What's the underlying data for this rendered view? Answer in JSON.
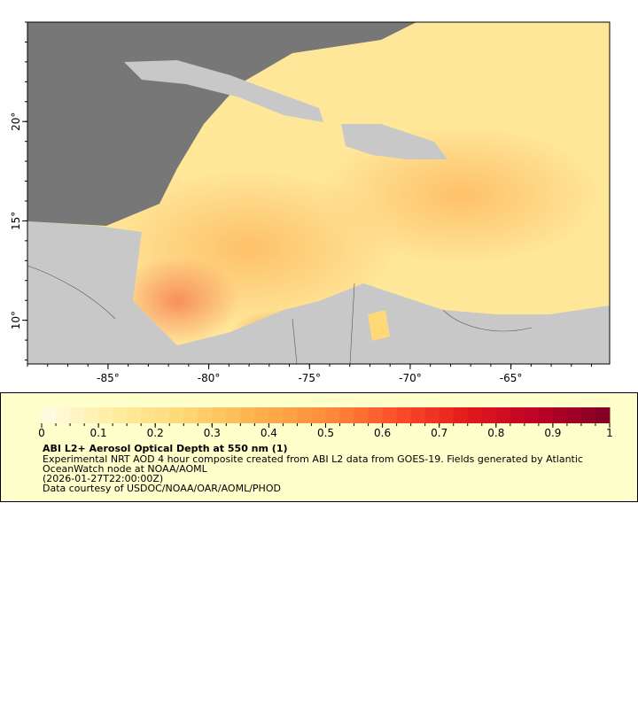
{
  "map": {
    "xlim": [
      -89,
      -60.1
    ],
    "ylim": [
      7.8,
      25
    ],
    "xticks": [
      {
        "value": -85,
        "label": "-85°"
      },
      {
        "value": -80,
        "label": "-80°"
      },
      {
        "value": -75,
        "label": "-75°"
      },
      {
        "value": -70,
        "label": "-70°"
      },
      {
        "value": -65,
        "label": "-65°"
      }
    ],
    "yticks": [
      {
        "value": 10,
        "label": "10°"
      },
      {
        "value": 15,
        "label": "15°"
      },
      {
        "value": 20,
        "label": "20°"
      }
    ]
  },
  "colorbar": {
    "lim": [
      0,
      1
    ],
    "ticks": [
      0,
      0.1,
      0.2,
      0.3,
      0.4,
      0.5,
      0.6,
      0.7,
      0.8,
      0.9,
      1
    ],
    "colors": [
      "#fffde6",
      "#ffeda0",
      "#fed976",
      "#feb24c",
      "#fd8d3c",
      "#fc4e2a",
      "#e31a1c",
      "#bd0026",
      "#800026"
    ]
  },
  "caption": {
    "title": "ABI L2+ Aerosol Optical Depth at 550 nm (1)",
    "lines": [
      "Experimental NRT AOD 4 hour composite created from ABI L2 data from GOES-19. Fields generated by Atlantic",
      "OceanWatch node at NOAA/AOML",
      "(2026-01-27T22:00:00Z)",
      "Data courtesy of USDOC/NOAA/OAR/AOML/PHOD"
    ]
  }
}
